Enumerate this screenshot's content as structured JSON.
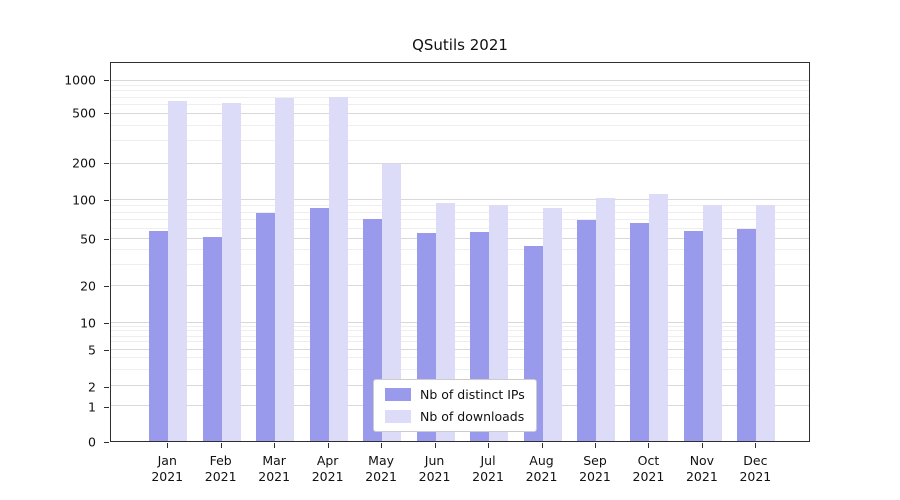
{
  "figure": {
    "background": "#ffffff"
  },
  "chart_data": {
    "type": "bar",
    "title": "QSutils 2021",
    "yscale": "symlog",
    "ylim": [
      0,
      1450
    ],
    "grid": true,
    "legend_position": "lower center",
    "categories": [
      "Jan 2021",
      "Feb 2021",
      "Mar 2021",
      "Apr 2021",
      "May 2021",
      "Jun 2021",
      "Jul 2021",
      "Aug 2021",
      "Sep 2021",
      "Oct 2021",
      "Nov 2021",
      "Dec 2021"
    ],
    "yticks": [
      0,
      1,
      2,
      5,
      10,
      20,
      50,
      100,
      200,
      500,
      1000
    ],
    "series": [
      {
        "name": "Nb of distinct IPs",
        "color": "#9a9aec",
        "values": [
          58,
          52,
          80,
          87,
          72,
          56,
          57,
          44,
          70,
          67,
          58,
          60
        ]
      },
      {
        "name": "Nb of downloads",
        "color": "#dcdcf8",
        "values": [
          650,
          620,
          690,
          710,
          200,
          95,
          92,
          87,
          105,
          112,
          92,
          92
        ]
      }
    ]
  }
}
